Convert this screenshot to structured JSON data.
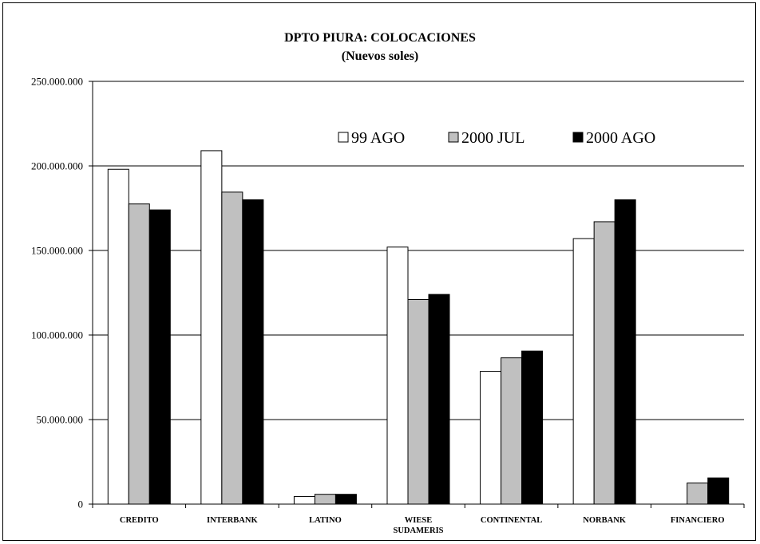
{
  "chart_data": {
    "type": "bar",
    "title": "DPTO PIURA: COLOCACIONES",
    "subtitle": "(Nuevos soles)",
    "categories": [
      "CREDITO",
      "INTERBANK",
      "LATINO",
      "WIESE SUDAMERIS",
      "CONTINENTAL",
      "NORBANK",
      "FINANCIERO"
    ],
    "category_lines": [
      [
        "CREDITO"
      ],
      [
        "INTERBANK"
      ],
      [
        "LATINO"
      ],
      [
        "WIESE",
        "SUDAMERIS"
      ],
      [
        "CONTINENTAL"
      ],
      [
        "NORBANK"
      ],
      [
        "FINANCIERO"
      ]
    ],
    "series": [
      {
        "name": "99 AGO",
        "color": "#ffffff",
        "values": [
          198000000,
          209000000,
          4500000,
          152000000,
          78500000,
          157000000,
          0
        ]
      },
      {
        "name": "2000 JUL",
        "color": "#c0c0c0",
        "values": [
          177500000,
          184500000,
          5800000,
          121000000,
          86500000,
          167000000,
          12500000
        ]
      },
      {
        "name": "2000 AGO",
        "color": "#000000",
        "values": [
          174000000,
          180000000,
          5800000,
          124000000,
          90500000,
          180000000,
          15500000
        ]
      }
    ],
    "ylim": [
      0,
      250000000
    ],
    "yticks": [
      0,
      50000000,
      100000000,
      150000000,
      200000000,
      250000000
    ],
    "ytick_labels": [
      "0",
      "50.000.000",
      "100.000.000",
      "150.000.000",
      "200.000.000",
      "250.000.000"
    ],
    "xlabel": "",
    "ylabel": "",
    "grid": true,
    "legend_position": "top-right"
  }
}
